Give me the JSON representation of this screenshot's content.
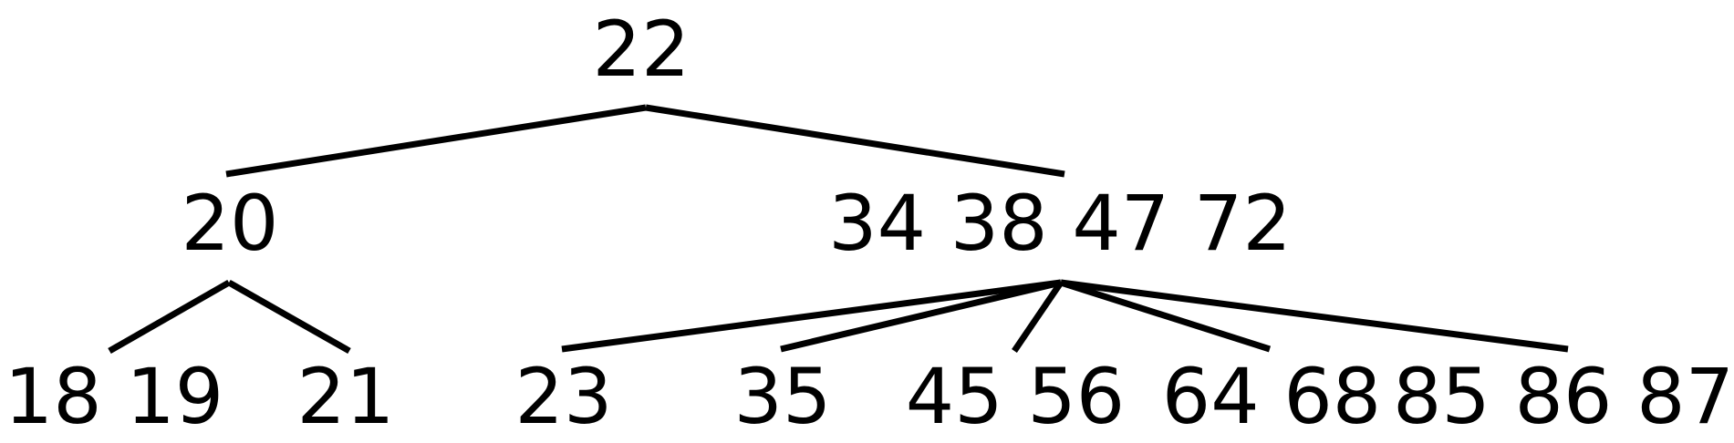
{
  "tree": {
    "root": {
      "label": "22"
    },
    "level1": [
      {
        "label": "20"
      },
      {
        "label": "34 38 47 72"
      }
    ],
    "level2": [
      {
        "label": "18 19",
        "parent": 0
      },
      {
        "label": "21",
        "parent": 0
      },
      {
        "label": "23",
        "parent": 1
      },
      {
        "label": "35",
        "parent": 1
      },
      {
        "label": "45 56",
        "parent": 1
      },
      {
        "label": "64 68",
        "parent": 1
      },
      {
        "label": "85 86 87",
        "parent": 1
      }
    ]
  }
}
